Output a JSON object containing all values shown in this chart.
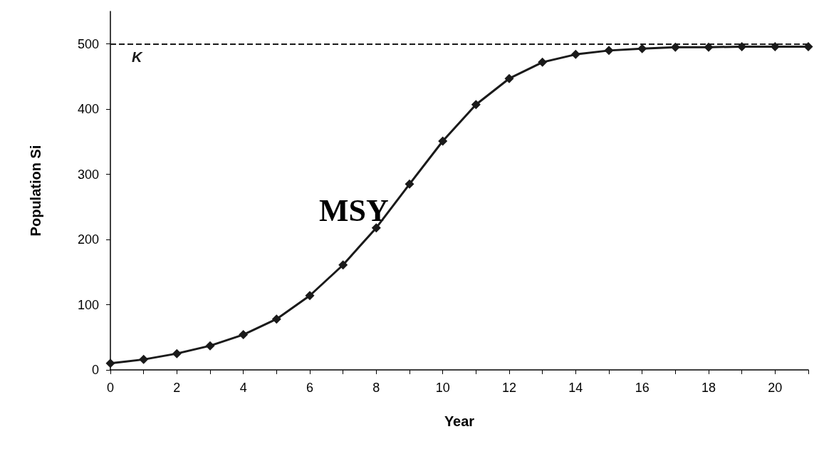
{
  "chart_data": {
    "type": "line",
    "xlabel": "Year",
    "ylabel": "Population Si",
    "x": [
      0,
      1,
      2,
      3,
      4,
      5,
      6,
      7,
      8,
      9,
      10,
      11,
      12,
      13,
      14,
      15,
      16,
      17,
      18,
      19,
      20,
      21
    ],
    "series": [
      {
        "color": "#1a1a1a",
        "values": [
          10,
          16,
          25,
          37,
          54,
          78,
          114,
          161,
          218,
          285,
          351,
          407,
          447,
          472,
          484,
          490,
          493,
          495,
          495,
          496,
          496,
          496
        ]
      }
    ],
    "xlim": [
      0,
      21
    ],
    "xticks": [
      0,
      {
        "value": 1,
        "label": null
      },
      2,
      {
        "value": 3,
        "label": null
      },
      4,
      {
        "value": 5,
        "label": null
      },
      6,
      {
        "value": 7,
        "label": null
      },
      8,
      {
        "value": 9,
        "label": null
      },
      10,
      {
        "value": 11,
        "label": null
      },
      12,
      {
        "value": 13,
        "label": null
      },
      14,
      {
        "value": 15,
        "label": null
      },
      16,
      {
        "value": 17,
        "label": null
      },
      18,
      {
        "value": 19,
        "label": null
      },
      20,
      {
        "value": 21,
        "label": null
      }
    ],
    "ylim": [
      0,
      550
    ],
    "yticks": [
      0,
      100,
      200,
      300,
      400,
      500
    ],
    "ref_lines": [
      {
        "axis": "y",
        "value": 500,
        "label": "K",
        "color": "#1a1a1a",
        "line_style": "dashed"
      }
    ],
    "annotations": [
      "MSY"
    ],
    "marker": "diamond",
    "line_style": "solid"
  }
}
